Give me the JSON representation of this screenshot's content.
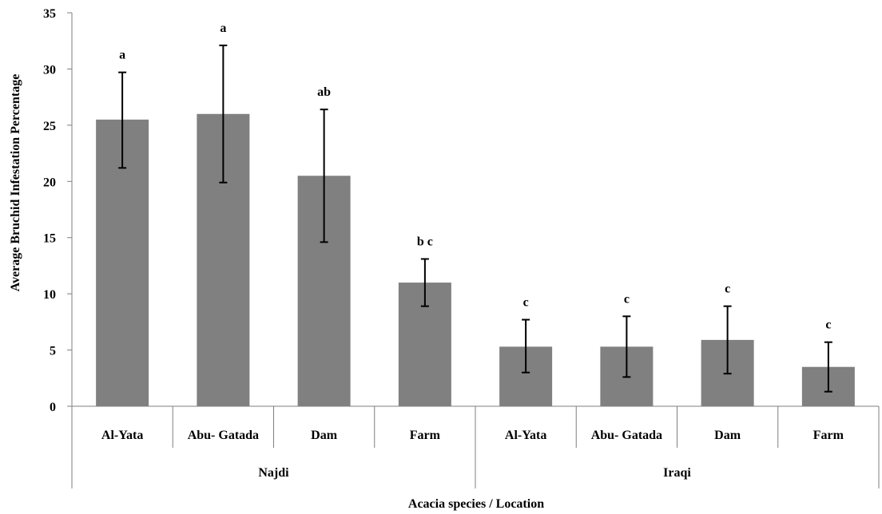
{
  "chart_data": {
    "type": "bar",
    "title": "",
    "xlabel": "Acacia species / Location",
    "ylabel": "Average Bruchid Infestation Percentage",
    "ylim": [
      0,
      35
    ],
    "yticks": [
      0,
      5,
      10,
      15,
      20,
      25,
      30,
      35
    ],
    "grid": false,
    "bar_color": "#808080",
    "groups": [
      {
        "name": "Najdi",
        "categories": [
          "Al-Yata",
          "Abu- Gatada",
          "Dam",
          "Farm"
        ]
      },
      {
        "name": "Iraqi",
        "categories": [
          "Al-Yata",
          "Abu- Gatada",
          "Dam",
          "Farm"
        ]
      }
    ],
    "categories": [
      "Al-Yata",
      "Abu- Gatada",
      "Dam",
      "Farm",
      "Al-Yata",
      "Abu- Gatada",
      "Dam",
      "Farm"
    ],
    "values": [
      25.5,
      26.0,
      20.5,
      11.0,
      5.3,
      5.3,
      5.9,
      3.5
    ],
    "error_low": [
      21.2,
      19.9,
      14.6,
      8.9,
      3.0,
      2.6,
      2.9,
      1.3
    ],
    "error_high": [
      29.7,
      32.1,
      26.4,
      13.1,
      7.7,
      8.0,
      8.9,
      5.7
    ],
    "significance_labels": [
      "a",
      "a",
      "ab",
      "b c",
      "c",
      "c",
      "c",
      "c"
    ]
  }
}
